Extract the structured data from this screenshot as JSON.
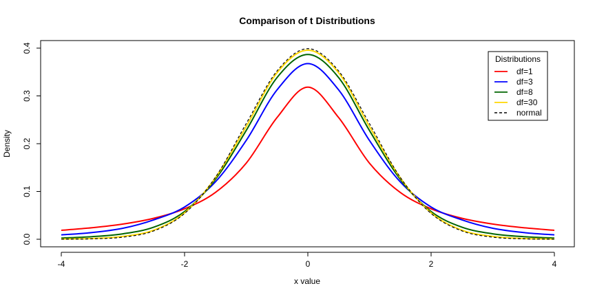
{
  "chart_data": {
    "type": "line",
    "title": "Comparison of t Distributions",
    "xlabel": "x value",
    "ylabel": "Density",
    "xlim": [
      -4,
      4
    ],
    "ylim": [
      0,
      0.4
    ],
    "x_ticks": [
      -4,
      -2,
      0,
      2,
      4
    ],
    "x_tick_labels": [
      "-4",
      "-2",
      "0",
      "2",
      "4"
    ],
    "y_ticks": [
      0,
      0.1,
      0.2,
      0.3,
      0.4
    ],
    "y_tick_labels": [
      "0.0",
      "0.1",
      "0.2",
      "0.3",
      "0.4"
    ],
    "grid": false,
    "legend": {
      "title": "Distributions",
      "position": "top-right"
    },
    "x": [
      -4,
      -3.5,
      -3,
      -2.5,
      -2,
      -1.5,
      -1,
      -0.5,
      0,
      0.5,
      1,
      1.5,
      2,
      2.5,
      3,
      3.5,
      4
    ],
    "series": [
      {
        "name": "df=1",
        "color": "#ff0000",
        "dash": "solid",
        "values": [
          0.0187,
          0.0241,
          0.0318,
          0.0439,
          0.0637,
          0.0979,
          0.1592,
          0.2546,
          0.3183,
          0.2546,
          0.1592,
          0.0979,
          0.0637,
          0.0439,
          0.0318,
          0.0241,
          0.0187
        ]
      },
      {
        "name": "df=3",
        "color": "#0000ff",
        "dash": "solid",
        "values": [
          0.0092,
          0.014,
          0.023,
          0.0406,
          0.0675,
          0.12,
          0.2067,
          0.3125,
          0.3676,
          0.3125,
          0.2067,
          0.12,
          0.0675,
          0.0406,
          0.023,
          0.014,
          0.0092
        ]
      },
      {
        "name": "df=8",
        "color": "#006400",
        "dash": "solid",
        "values": [
          0.0026,
          0.0054,
          0.0114,
          0.0253,
          0.0581,
          0.1254,
          0.2276,
          0.3383,
          0.3867,
          0.3383,
          0.2276,
          0.1254,
          0.0581,
          0.0253,
          0.0114,
          0.0054,
          0.0026
        ]
      },
      {
        "name": "df=30",
        "color": "#ffd700",
        "dash": "solid",
        "values": [
          0.0005,
          0.0015,
          0.006,
          0.019,
          0.0552,
          0.1287,
          0.236,
          0.3484,
          0.3956,
          0.3484,
          0.236,
          0.1287,
          0.0552,
          0.019,
          0.006,
          0.0015,
          0.0005
        ]
      },
      {
        "name": "normal",
        "color": "#000000",
        "dash": "dashed",
        "values": [
          0.0001,
          0.0009,
          0.0044,
          0.0175,
          0.054,
          0.1295,
          0.242,
          0.3521,
          0.3989,
          0.3521,
          0.242,
          0.1295,
          0.054,
          0.0175,
          0.0044,
          0.0009,
          0.0001
        ]
      }
    ]
  }
}
